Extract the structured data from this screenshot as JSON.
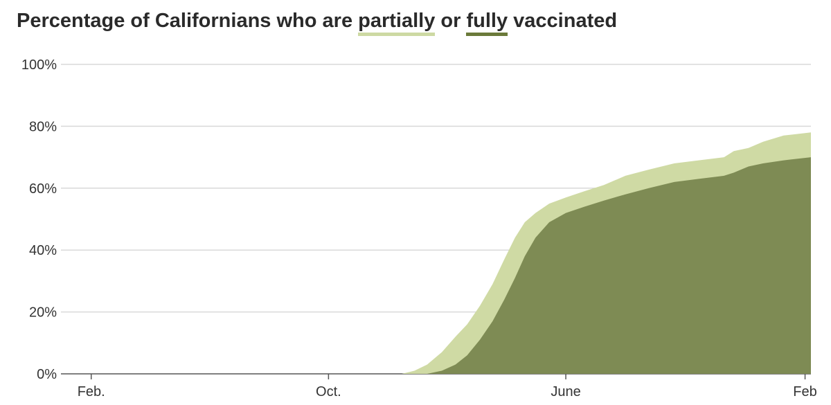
{
  "title": {
    "prefix": "Percentage of Californians who are",
    "partial_word": "partially",
    "joiner": "or",
    "full_word": "fully",
    "suffix": "vaccinated"
  },
  "colors": {
    "partial": "#cfdaa4",
    "full": "#7e8b54",
    "grid": "#d9d9d9",
    "axis": "#555555"
  },
  "chart_data": {
    "type": "area",
    "title": "Percentage of Californians who are partially or fully vaccinated",
    "xlabel": "",
    "ylabel": "",
    "ylim": [
      0,
      100
    ],
    "grid": true,
    "y_ticks": [
      "0%",
      "20%",
      "40%",
      "60%",
      "80%",
      "100%"
    ],
    "x_ticks": [
      {
        "date": "2020-02-01",
        "label": "Feb."
      },
      {
        "date": "2020-10-01",
        "label": "Oct."
      },
      {
        "date": "2021-06-01",
        "label": "June"
      },
      {
        "date": "2022-02-01",
        "label": "Feb"
      }
    ],
    "x_range": [
      "2020-01-01",
      "2022-02-07"
    ],
    "series": [
      {
        "name": "partially",
        "x": [
          "2020-01-01",
          "2020-12-15",
          "2020-12-28",
          "2021-01-10",
          "2021-01-25",
          "2021-02-08",
          "2021-02-20",
          "2021-03-05",
          "2021-03-18",
          "2021-03-30",
          "2021-04-10",
          "2021-04-20",
          "2021-05-01",
          "2021-05-15",
          "2021-06-01",
          "2021-06-20",
          "2021-07-10",
          "2021-08-01",
          "2021-08-25",
          "2021-09-20",
          "2021-10-15",
          "2021-11-10",
          "2021-11-20",
          "2021-12-05",
          "2021-12-20",
          "2022-01-10",
          "2022-02-07"
        ],
        "values": [
          0,
          0,
          1,
          3,
          7,
          12,
          16,
          22,
          29,
          37,
          44,
          49,
          52,
          55,
          57,
          59,
          61,
          64,
          66,
          68,
          69,
          70,
          72,
          73,
          75,
          77,
          78
        ]
      },
      {
        "name": "fully",
        "x": [
          "2020-01-01",
          "2021-01-10",
          "2021-01-25",
          "2021-02-08",
          "2021-02-20",
          "2021-03-05",
          "2021-03-18",
          "2021-03-30",
          "2021-04-10",
          "2021-04-20",
          "2021-05-01",
          "2021-05-15",
          "2021-06-01",
          "2021-06-20",
          "2021-07-10",
          "2021-08-01",
          "2021-08-25",
          "2021-09-20",
          "2021-10-15",
          "2021-11-10",
          "2021-11-20",
          "2021-12-05",
          "2021-12-20",
          "2022-01-10",
          "2022-02-07"
        ],
        "values": [
          0,
          0,
          1,
          3,
          6,
          11,
          17,
          24,
          31,
          38,
          44,
          49,
          52,
          54,
          56,
          58,
          60,
          62,
          63,
          64,
          65,
          67,
          68,
          69,
          70
        ]
      }
    ]
  }
}
